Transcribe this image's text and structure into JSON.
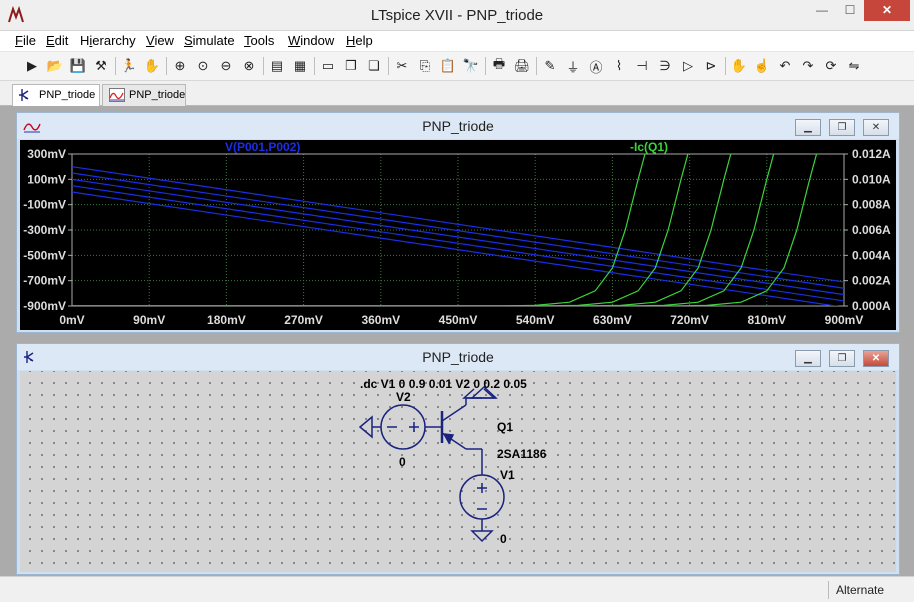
{
  "window": {
    "title": "LTspice XVII - PNP_triode",
    "controls": {
      "minimize": "—",
      "maximize": "☐",
      "close": "✕"
    }
  },
  "menubar": {
    "items": [
      {
        "label": "File",
        "accel": "F"
      },
      {
        "label": "Edit",
        "accel": "E"
      },
      {
        "label": "Hierarchy",
        "accel": "i"
      },
      {
        "label": "View",
        "accel": "V"
      },
      {
        "label": "Simulate",
        "accel": "S"
      },
      {
        "label": "Tools",
        "accel": "T"
      },
      {
        "label": "Window",
        "accel": "W"
      },
      {
        "label": "Help",
        "accel": "H"
      }
    ]
  },
  "toolbar": {
    "icons": [
      "new-schematic-icon",
      "open-icon",
      "save-icon",
      "control-panel-icon",
      "run-icon",
      "halt-icon",
      "zoom-in-icon",
      "pan-icon",
      "zoom-out-icon",
      "zoom-cancel-icon",
      "autorange-icon",
      "grid-icon",
      "tile-horizontal-icon",
      "cascade-icon",
      "tile-vertical-icon",
      "cut-icon",
      "copy-icon",
      "paste-icon",
      "find-icon",
      "print-setup-icon",
      "print-icon",
      "draw-wire-icon",
      "ground-icon",
      "label-net-icon",
      "resistor-icon",
      "capacitor-icon",
      "inductor-icon",
      "diode-icon",
      "component-icon",
      "move-icon",
      "drag-icon",
      "undo-icon",
      "redo-icon",
      "rotate-icon",
      "mirror-icon"
    ]
  },
  "tabs": [
    {
      "label": "PNP_triode",
      "kind": "schematic",
      "active": true
    },
    {
      "label": "PNP_triode",
      "kind": "waveform",
      "active": false
    }
  ],
  "plot_window": {
    "title": "PNP_triode",
    "controls": {
      "minimize": "▁",
      "restore": "❐",
      "close": "✕"
    }
  },
  "schematic_window": {
    "title": "PNP_triode",
    "controls": {
      "minimize": "▁",
      "restore": "❐",
      "close": "✕"
    },
    "directive": ".dc V1 0 0.9 0.01 V2 0 0.2 0.05",
    "components": {
      "v2_name": "V2",
      "v2_ground": "0",
      "q1_name": "Q1",
      "q1_model": "2SA1186",
      "v1_name": "V1",
      "v1_ground": "0"
    }
  },
  "status": {
    "text": "Alternate"
  },
  "colors": {
    "plot_bg": "#000000",
    "grid": "#3a7a3a",
    "trace_v": "#1c2ee6",
    "trace_i": "#3bd43b",
    "axis_text": "#dddddd",
    "schematic_line": "#1a237e"
  },
  "chart_data": {
    "type": "line",
    "x_label": "",
    "x_ticks": [
      "0mV",
      "90mV",
      "180mV",
      "270mV",
      "360mV",
      "450mV",
      "540mV",
      "630mV",
      "720mV",
      "810mV",
      "900mV"
    ],
    "xlim": [
      0,
      900
    ],
    "left_ticks": [
      "300mV",
      "100mV",
      "-100mV",
      "-300mV",
      "-500mV",
      "-700mV",
      "-900mV"
    ],
    "left_ylim": [
      -900,
      300
    ],
    "right_ticks": [
      "0.012A",
      "0.010A",
      "0.008A",
      "0.006A",
      "0.004A",
      "0.002A",
      "0.000A"
    ],
    "right_ylim": [
      0,
      0.012
    ],
    "legend": [
      {
        "name": "V(P001,P002)",
        "color": "#1c2ee6",
        "axis": "left"
      },
      {
        "name": "-Ic(Q1)",
        "color": "#3bd43b",
        "axis": "right"
      }
    ],
    "voltage_series": [
      {
        "x": [
          0,
          900
        ],
        "y": [
          200,
          -710
        ]
      },
      {
        "x": [
          0,
          900
        ],
        "y": [
          150,
          -760
        ]
      },
      {
        "x": [
          0,
          900
        ],
        "y": [
          100,
          -810
        ]
      },
      {
        "x": [
          0,
          900
        ],
        "y": [
          50,
          -860
        ]
      },
      {
        "x": [
          0,
          900
        ],
        "y": [
          0,
          -910
        ]
      }
    ],
    "current_series": [
      {
        "x": [
          0,
          500,
          540,
          580,
          610,
          630,
          645,
          660,
          670
        ],
        "y": [
          0,
          0,
          5e-05,
          0.0003,
          0.0012,
          0.003,
          0.006,
          0.01,
          0.0125
        ]
      },
      {
        "x": [
          0,
          550,
          590,
          630,
          660,
          680,
          695,
          710,
          720
        ],
        "y": [
          0,
          0,
          5e-05,
          0.0003,
          0.0012,
          0.003,
          0.006,
          0.01,
          0.0125
        ]
      },
      {
        "x": [
          0,
          600,
          640,
          680,
          710,
          730,
          745,
          760,
          770
        ],
        "y": [
          0,
          0,
          5e-05,
          0.0003,
          0.0012,
          0.003,
          0.006,
          0.01,
          0.0125
        ]
      },
      {
        "x": [
          0,
          650,
          690,
          730,
          760,
          780,
          795,
          810,
          820
        ],
        "y": [
          0,
          0,
          5e-05,
          0.0003,
          0.0012,
          0.003,
          0.006,
          0.01,
          0.0125
        ]
      },
      {
        "x": [
          0,
          700,
          740,
          780,
          810,
          830,
          845,
          860,
          870
        ],
        "y": [
          0,
          0,
          5e-05,
          0.0003,
          0.0012,
          0.003,
          0.006,
          0.01,
          0.0125
        ]
      }
    ],
    "grid": true
  }
}
